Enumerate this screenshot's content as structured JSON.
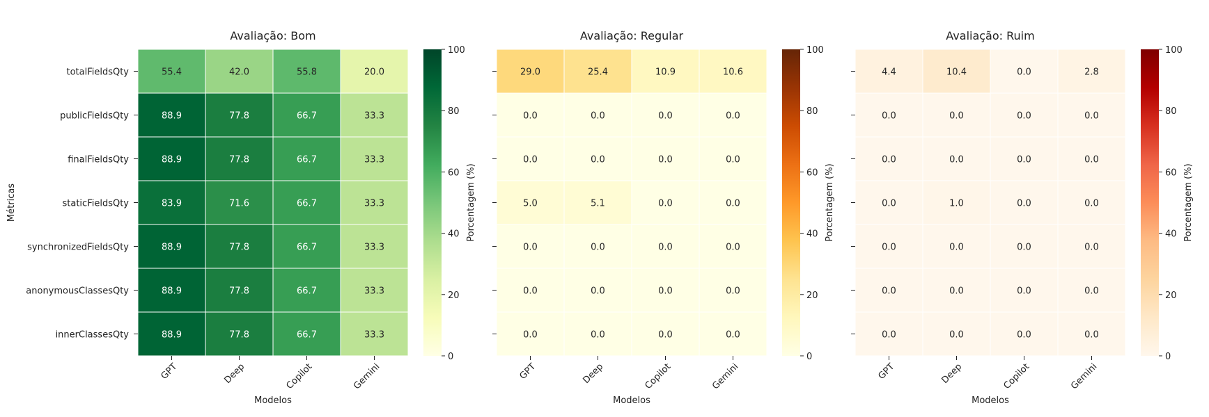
{
  "chart_data": [
    {
      "type": "heatmap",
      "title": "Avaliação: Bom",
      "xlabel": "Modelos",
      "ylabel": "Métricas",
      "colorbar_label": "Porcentagem (%)",
      "colormap": "Greens",
      "vmin": 0,
      "vmax": 100,
      "colorbar_ticks": [
        0,
        20,
        40,
        60,
        80,
        100
      ],
      "x": [
        "GPT",
        "Deep",
        "Copilot",
        "Gemini"
      ],
      "y": [
        "totalFieldsQty",
        "publicFieldsQty",
        "finalFieldsQty",
        "staticFieldsQty",
        "synchronizedFieldsQty",
        "anonymousClassesQty",
        "innerClassesQty"
      ],
      "values": [
        [
          55.4,
          42.0,
          55.8,
          20.0
        ],
        [
          88.9,
          77.8,
          66.7,
          33.3
        ],
        [
          88.9,
          77.8,
          66.7,
          33.3
        ],
        [
          83.9,
          71.6,
          66.7,
          33.3
        ],
        [
          88.9,
          77.8,
          66.7,
          33.3
        ],
        [
          88.9,
          77.8,
          66.7,
          33.3
        ],
        [
          88.9,
          77.8,
          66.7,
          33.3
        ]
      ]
    },
    {
      "type": "heatmap",
      "title": "Avaliação: Regular",
      "xlabel": "Modelos",
      "ylabel": "",
      "colorbar_label": "Porcentagem (%)",
      "colormap": "YlOrBr",
      "vmin": 0,
      "vmax": 100,
      "colorbar_ticks": [
        0,
        20,
        40,
        60,
        80,
        100
      ],
      "x": [
        "GPT",
        "Deep",
        "Copilot",
        "Gemini"
      ],
      "y": [
        "totalFieldsQty",
        "publicFieldsQty",
        "finalFieldsQty",
        "staticFieldsQty",
        "synchronizedFieldsQty",
        "anonymousClassesQty",
        "innerClassesQty"
      ],
      "values": [
        [
          29.0,
          25.4,
          10.9,
          10.6
        ],
        [
          0.0,
          0.0,
          0.0,
          0.0
        ],
        [
          0.0,
          0.0,
          0.0,
          0.0
        ],
        [
          5.0,
          5.1,
          0.0,
          0.0
        ],
        [
          0.0,
          0.0,
          0.0,
          0.0
        ],
        [
          0.0,
          0.0,
          0.0,
          0.0
        ],
        [
          0.0,
          0.0,
          0.0,
          0.0
        ]
      ]
    },
    {
      "type": "heatmap",
      "title": "Avaliação: Ruim",
      "xlabel": "Modelos",
      "ylabel": "",
      "colorbar_label": "Porcentagem (%)",
      "colormap": "OrRd",
      "vmin": 0,
      "vmax": 100,
      "colorbar_ticks": [
        0,
        20,
        40,
        60,
        80,
        100
      ],
      "x": [
        "GPT",
        "Deep",
        "Copilot",
        "Gemini"
      ],
      "y": [
        "totalFieldsQty",
        "publicFieldsQty",
        "finalFieldsQty",
        "staticFieldsQty",
        "synchronizedFieldsQty",
        "anonymousClassesQty",
        "innerClassesQty"
      ],
      "values": [
        [
          4.4,
          10.4,
          0.0,
          2.8
        ],
        [
          0.0,
          0.0,
          0.0,
          0.0
        ],
        [
          0.0,
          0.0,
          0.0,
          0.0
        ],
        [
          0.0,
          1.0,
          0.0,
          0.0
        ],
        [
          0.0,
          0.0,
          0.0,
          0.0
        ],
        [
          0.0,
          0.0,
          0.0,
          0.0
        ],
        [
          0.0,
          0.0,
          0.0,
          0.0
        ]
      ]
    }
  ]
}
